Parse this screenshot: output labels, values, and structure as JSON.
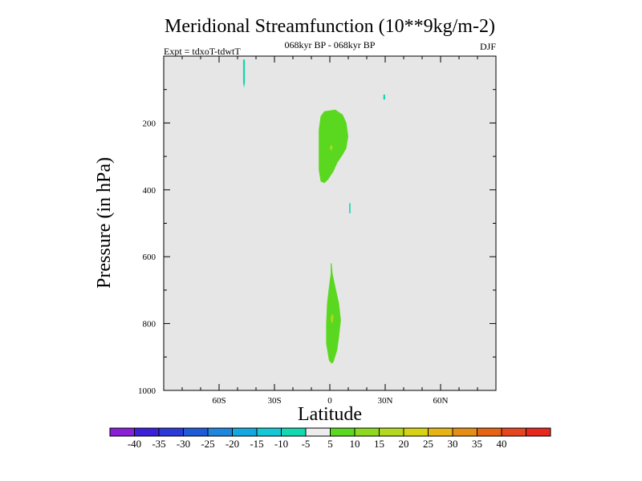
{
  "chart_data": {
    "type": "heatmap",
    "title": "Meridional Streamfunction (10**9kg/m-2)",
    "subtitle": "068kyr BP - 068kyr BP",
    "left_label": "Expt = tdxoT-tdwtT",
    "right_label": "DJF",
    "xlabel": "Latitude",
    "ylabel": "Pressure (in hPa)",
    "xlim": [
      -90,
      90
    ],
    "ylim": [
      1000,
      0
    ],
    "x_ticks": [
      {
        "value": -60,
        "label": "60S"
      },
      {
        "value": -30,
        "label": "30S"
      },
      {
        "value": 0,
        "label": "0"
      },
      {
        "value": 30,
        "label": "30N"
      },
      {
        "value": 60,
        "label": "60N"
      }
    ],
    "y_ticks": [
      {
        "value": 200,
        "label": "200"
      },
      {
        "value": 400,
        "label": "400"
      },
      {
        "value": 600,
        "label": "600"
      },
      {
        "value": 800,
        "label": "800"
      },
      {
        "value": 1000,
        "label": "1000"
      }
    ],
    "background_color": "#e6e6e6",
    "colorbar": {
      "colors": [
        "#8a1fd8",
        "#3c1fd8",
        "#2a3ad8",
        "#1f5ad8",
        "#1f86e0",
        "#14a8e0",
        "#14c8d8",
        "#14d8b0",
        "#ececec",
        "#5ad81f",
        "#8ed81f",
        "#b4d81f",
        "#d8d214",
        "#e6b414",
        "#e68e14",
        "#e66414",
        "#e6461f",
        "#e6281f"
      ],
      "labels": [
        "-40",
        "-35",
        "-30",
        "-25",
        "-20",
        "-15",
        "-10",
        "-5",
        "5",
        "10",
        "15",
        "20",
        "25",
        "30",
        "35",
        "40"
      ]
    },
    "regions": [
      {
        "name": "upper-positive-cell",
        "color": "#5ad81f",
        "points": [
          [
            -3,
            165
          ],
          [
            3,
            160
          ],
          [
            7,
            175
          ],
          [
            9,
            200
          ],
          [
            10,
            240
          ],
          [
            9,
            275
          ],
          [
            7,
            295
          ],
          [
            4,
            320
          ],
          [
            2,
            345
          ],
          [
            -1,
            370
          ],
          [
            -3,
            380
          ],
          [
            -5,
            375
          ],
          [
            -6,
            340
          ],
          [
            -6,
            280
          ],
          [
            -6,
            220
          ],
          [
            -5,
            180
          ]
        ]
      },
      {
        "name": "upper-positive-core",
        "color": "#b4d81f",
        "points": [
          [
            0.5,
            265
          ],
          [
            1.5,
            272
          ],
          [
            1,
            282
          ],
          [
            0,
            278
          ]
        ]
      },
      {
        "name": "lower-positive-cell",
        "color": "#5ad81f",
        "points": [
          [
            1,
            620
          ],
          [
            1.5,
            650
          ],
          [
            3,
            690
          ],
          [
            5,
            740
          ],
          [
            6,
            790
          ],
          [
            5,
            840
          ],
          [
            4,
            880
          ],
          [
            2,
            915
          ],
          [
            1,
            920
          ],
          [
            -0.5,
            910
          ],
          [
            -2,
            860
          ],
          [
            -2,
            800
          ],
          [
            -1.5,
            740
          ],
          [
            -0.5,
            690
          ],
          [
            0.5,
            650
          ],
          [
            0.5,
            620
          ]
        ]
      },
      {
        "name": "lower-positive-core",
        "color": "#b4d81f",
        "points": [
          [
            1,
            770
          ],
          [
            2,
            780
          ],
          [
            1.5,
            800
          ],
          [
            0.5,
            790
          ]
        ]
      },
      {
        "name": "southern-negative-streak",
        "color": "#14d8b0",
        "points": [
          [
            -47,
            10
          ],
          [
            -46,
            10
          ],
          [
            -46,
            80
          ],
          [
            -46.5,
            95
          ],
          [
            -47,
            80
          ]
        ]
      },
      {
        "name": "northern-negative-dot",
        "color": "#14d8b0",
        "points": [
          [
            29,
            115
          ],
          [
            30,
            115
          ],
          [
            30,
            130
          ],
          [
            29,
            130
          ]
        ]
      },
      {
        "name": "mid-negative-dot",
        "color": "#14d8b0",
        "points": [
          [
            10.5,
            440
          ],
          [
            11.2,
            440
          ],
          [
            11.2,
            470
          ],
          [
            10.5,
            470
          ]
        ]
      }
    ]
  }
}
